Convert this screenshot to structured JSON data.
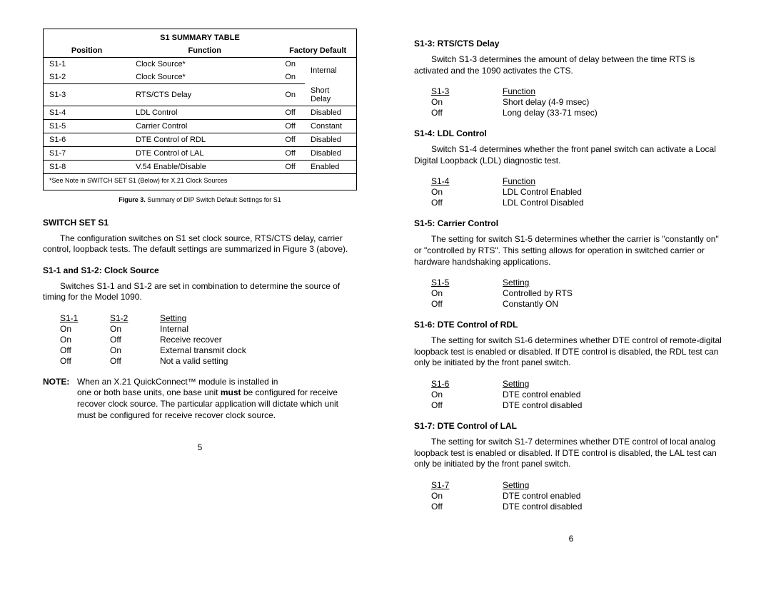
{
  "left": {
    "summaryTable": {
      "title": "S1 SUMMARY TABLE",
      "headers": {
        "position": "Position",
        "function": "Function",
        "factoryDefault": "Factory Default"
      },
      "rows": [
        {
          "position": "S1-1",
          "function": "Clock Source*",
          "def1": "On",
          "def2": ""
        },
        {
          "position": "S1-2",
          "function": "Clock Source*",
          "def1": "On",
          "def2": "Internal"
        },
        {
          "position": "S1-3",
          "function": "RTS/CTS Delay",
          "def1": "On",
          "def2": "Short Delay"
        },
        {
          "position": "S1-4",
          "function": "LDL Control",
          "def1": "Off",
          "def2": "Disabled"
        },
        {
          "position": "S1-5",
          "function": "Carrier Control",
          "def1": "Off",
          "def2": "Constant"
        },
        {
          "position": "S1-6",
          "function": "DTE Control of RDL",
          "def1": "Off",
          "def2": "Disabled"
        },
        {
          "position": "S1-7",
          "function": "DTE Control of LAL",
          "def1": "Off",
          "def2": "Disabled"
        },
        {
          "position": "S1-8",
          "function": "V.54 Enable/Disable",
          "def1": "Off",
          "def2": "Enabled"
        }
      ],
      "footnote": "*See Note in SWITCH SET S1 (Below) for X.21 Clock Sources"
    },
    "figureCaption": {
      "label": "Figure 3.",
      "text": "Summary of DIP Switch Default Settings for S1"
    },
    "switchSetHeading": "SWITCH SET S1",
    "switchSetText": "The configuration switches on S1 set clock source, RTS/CTS delay, carrier control, loopback tests.  The default settings are summarized in Figure 3 (above).",
    "clockSource": {
      "heading": "S1-1 and S1-2:  Clock Source",
      "text": "Switches S1-1 and S1-2 are set in combination to determine the source of timing for the Model 1090.",
      "table": {
        "headers": [
          "S1-1",
          "S1-2",
          "Setting"
        ],
        "rows": [
          [
            "On",
            "On",
            "Internal"
          ],
          [
            "On",
            "Off",
            "Receive recover"
          ],
          [
            "Off",
            "On",
            "External transmit clock"
          ],
          [
            "Off",
            "Off",
            "Not a valid setting"
          ]
        ]
      }
    },
    "note": {
      "label": "NOTE:",
      "firstLine": "When an X.21 QuickConnect™ module is installed in",
      "rest": "one or both base units, one base unit <b>must</b> be configured for receive recover clock source.  The particular application will dictate which unit must be configured for receive recover clock source."
    },
    "pageNumber": "5"
  },
  "right": {
    "rtscts": {
      "heading": "S1-3:  RTS/CTS Delay",
      "text": "Switch S1-3 determines the amount of delay between the time RTS is activated and the 1090 activates the CTS.",
      "table": {
        "headers": [
          "S1-3",
          "Function"
        ],
        "rows": [
          [
            "On",
            "Short delay (4-9 msec)"
          ],
          [
            "Off",
            "Long delay (33-71 msec)"
          ]
        ]
      }
    },
    "ldl": {
      "heading": "S1-4:  LDL Control",
      "text": "Switch S1-4 determines whether the front panel switch can activate a Local Digital Loopback (LDL) diagnostic test.",
      "table": {
        "headers": [
          "S1-4",
          "Function"
        ],
        "rows": [
          [
            "On",
            "LDL Control Enabled"
          ],
          [
            "Off",
            "LDL Control Disabled"
          ]
        ]
      }
    },
    "carrier": {
      "heading": "S1-5:  Carrier Control",
      "text": "The setting for switch S1-5 determines whether the carrier is \"constantly on\" or \"controlled by RTS\".  This setting allows for operation in switched carrier or hardware handshaking applications.",
      "table": {
        "headers": [
          "S1-5",
          "Setting"
        ],
        "rows": [
          [
            "On",
            "Controlled by RTS"
          ],
          [
            "Off",
            "Constantly ON"
          ]
        ]
      }
    },
    "rdl": {
      "heading": "S1-6:  DTE Control of RDL",
      "text": "The setting for switch S1-6 determines whether DTE control of remote-digital loopback test is enabled or disabled.  If DTE control is disabled, the RDL test can only be initiated by the front panel switch.",
      "table": {
        "headers": [
          "S1-6",
          "Setting"
        ],
        "rows": [
          [
            "On",
            "DTE control enabled"
          ],
          [
            "Off",
            "DTE control disabled"
          ]
        ]
      }
    },
    "lal": {
      "heading": "S1-7:  DTE Control of LAL",
      "text": "The setting for switch S1-7 determines whether DTE control of local analog loopback test is enabled or disabled.  If DTE control is disabled, the LAL test can only be initiated by the front panel switch.",
      "table": {
        "headers": [
          "S1-7",
          "Setting"
        ],
        "rows": [
          [
            "On",
            "DTE control enabled"
          ],
          [
            "Off",
            "DTE control disabled"
          ]
        ]
      }
    },
    "pageNumber": "6"
  }
}
